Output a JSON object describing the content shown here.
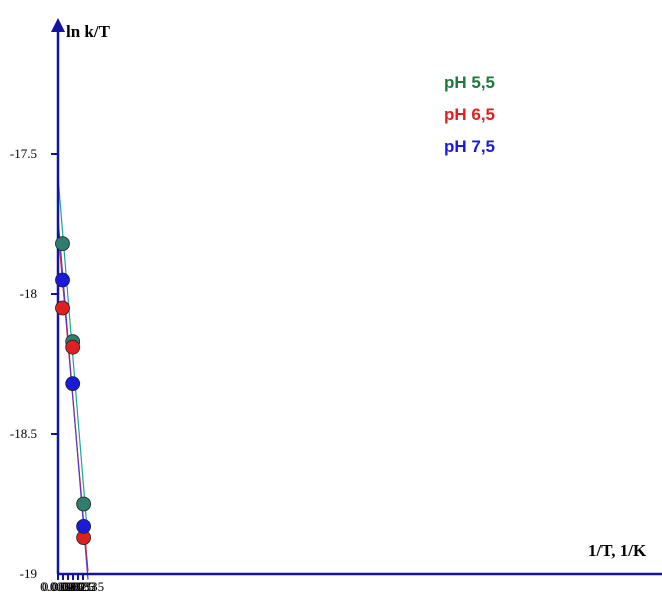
{
  "chart_data": {
    "type": "scatter",
    "title": "",
    "xlabel": "1/T, 1/K",
    "ylabel": "ln k/T",
    "xlim": [
      0.0031,
      0.0034
    ],
    "ylim": [
      -19,
      -17
    ],
    "x_ticks": [
      "0.0031",
      "0.00315",
      "0.0032",
      "0.00325",
      "0.0033",
      "0.00335"
    ],
    "y_ticks": [
      "-17.5",
      "-18",
      "-18.5",
      "-19"
    ],
    "x_tick_values": [
      0.0031,
      0.00315,
      0.0032,
      0.00325,
      0.0033,
      0.00335
    ],
    "y_tick_values": [
      -17.5,
      -18,
      -18.5,
      -19
    ],
    "legend_position": "top-right",
    "grid": false,
    "series": [
      {
        "name": "pH 5,5",
        "color": "#1a8a73",
        "label_color": "#1e7a3a",
        "marker_color": "#2e7d6e",
        "line_color": "#1aa59a",
        "x": [
          0.003145,
          0.003247,
          0.003356
        ],
        "y": [
          -17.82,
          -18.17,
          -18.75
        ],
        "fit": [
          [
            0.0031,
            -17.58
          ],
          [
            0.0034,
            -18.88
          ]
        ]
      },
      {
        "name": "pH 6,5",
        "color": "#e02020",
        "label_color": "#e02020",
        "marker_color": "#e02020",
        "line_color": "#e02020",
        "x": [
          0.003145,
          0.003247,
          0.003356
        ],
        "y": [
          -18.05,
          -18.19,
          -18.87
        ],
        "fit": [
          [
            0.0031,
            -17.77
          ],
          [
            0.0034,
            -18.99
          ]
        ]
      },
      {
        "name": "pH 7,5",
        "color": "#1a1adc",
        "label_color": "#1a1adc",
        "marker_color": "#1a1adc",
        "line_color": "#5a3ac8",
        "x": [
          0.003145,
          0.003247,
          0.003356
        ],
        "y": [
          -17.95,
          -18.32,
          -18.83
        ],
        "fit": [
          [
            0.0031,
            -17.73
          ],
          [
            0.0034,
            -19.02
          ]
        ]
      }
    ]
  }
}
